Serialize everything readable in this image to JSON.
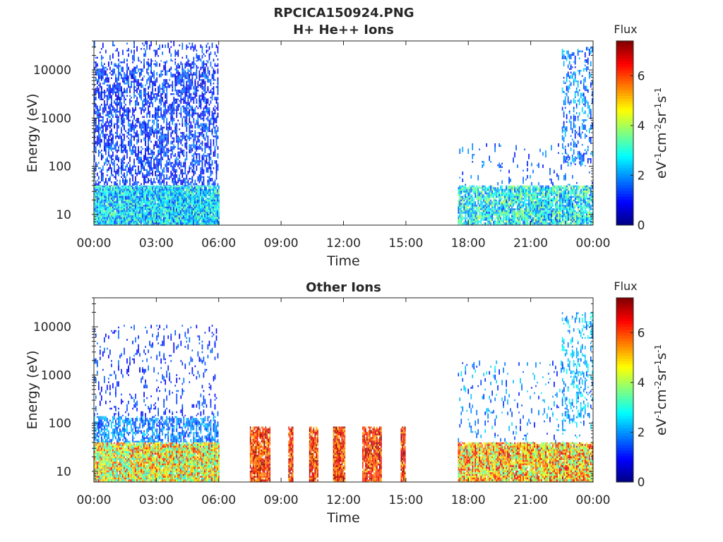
{
  "figure": {
    "title_line1": "RPCICA150924.PNG"
  },
  "chart_data": [
    {
      "type": "heatmap",
      "title": "H+ He++ Ions",
      "xlabel": "Time",
      "ylabel": "Energy (eV)",
      "x_tick_labels": [
        "00:00",
        "03:00",
        "06:00",
        "09:00",
        "12:00",
        "15:00",
        "18:00",
        "21:00",
        "00:00"
      ],
      "x_range_hours": [
        0,
        24
      ],
      "y_scale": "log",
      "y_range_eV": [
        6,
        40000
      ],
      "y_tick_labels": [
        "10",
        "100",
        "1000",
        "10000"
      ],
      "y_tick_values": [
        10,
        100,
        1000,
        10000
      ],
      "colorbar": {
        "title": "Flux",
        "unit_label": "eV-1cm-2sr-1s-1",
        "range": [
          0,
          7.4
        ],
        "tick_labels": [
          "0",
          "2",
          "4",
          "6"
        ],
        "tick_values": [
          0,
          2,
          4,
          6
        ],
        "colormap": "jet"
      },
      "blocks": [
        {
          "t0": 0.0,
          "t1": 6.05,
          "e0": 6,
          "e1": 40,
          "flux_min": 1.2,
          "flux_max": 3.8,
          "density": 0.95
        },
        {
          "t0": 0.0,
          "t1": 6.0,
          "e0": 40,
          "e1": 15000,
          "flux_min": 0.5,
          "flux_max": 2.0,
          "density": 0.35
        },
        {
          "t0": 0.0,
          "t1": 6.0,
          "e0": 15000,
          "e1": 40000,
          "flux_min": 0.8,
          "flux_max": 1.8,
          "density": 0.12
        },
        {
          "t0": 17.5,
          "t1": 24.0,
          "e0": 6,
          "e1": 40,
          "flux_min": 1.3,
          "flux_max": 4.2,
          "density": 0.75
        },
        {
          "t0": 17.5,
          "t1": 24.0,
          "e0": 40,
          "e1": 300,
          "flux_min": 1.0,
          "flux_max": 2.2,
          "density": 0.05
        },
        {
          "t0": 22.5,
          "t1": 24.0,
          "e0": 100,
          "e1": 30000,
          "flux_min": 1.0,
          "flux_max": 2.6,
          "density": 0.18
        }
      ]
    },
    {
      "type": "heatmap",
      "title": "Other Ions",
      "xlabel": "Time",
      "ylabel": "Energy (eV)",
      "x_tick_labels": [
        "00:00",
        "03:00",
        "06:00",
        "09:00",
        "12:00",
        "15:00",
        "18:00",
        "21:00",
        "00:00"
      ],
      "x_range_hours": [
        0,
        24
      ],
      "y_scale": "log",
      "y_range_eV": [
        6,
        40000
      ],
      "y_tick_labels": [
        "10",
        "100",
        "1000",
        "10000"
      ],
      "y_tick_values": [
        10,
        100,
        1000,
        10000
      ],
      "colorbar": {
        "title": "Flux",
        "unit_label": "eV-1cm-2sr-1s-1",
        "range": [
          0,
          7.4
        ],
        "tick_labels": [
          "0",
          "2",
          "4",
          "6"
        ],
        "tick_values": [
          0,
          2,
          4,
          6
        ],
        "colormap": "jet"
      },
      "blocks": [
        {
          "t0": 0.0,
          "t1": 6.05,
          "e0": 6,
          "e1": 40,
          "flux_min": 2.5,
          "flux_max": 6.5,
          "density": 0.95
        },
        {
          "t0": 0.0,
          "t1": 6.0,
          "e0": 40,
          "e1": 140,
          "flux_min": 1.0,
          "flux_max": 2.6,
          "density": 0.45
        },
        {
          "t0": 0.0,
          "t1": 6.0,
          "e0": 140,
          "e1": 11000,
          "flux_min": 0.8,
          "flux_max": 1.8,
          "density": 0.08
        },
        {
          "t0": 7.5,
          "t1": 8.5,
          "e0": 6,
          "e1": 85,
          "flux_min": 5.0,
          "flux_max": 7.4,
          "density": 0.8
        },
        {
          "t0": 9.35,
          "t1": 9.6,
          "e0": 6,
          "e1": 85,
          "flux_min": 5.0,
          "flux_max": 7.4,
          "density": 0.8
        },
        {
          "t0": 10.35,
          "t1": 10.8,
          "e0": 6,
          "e1": 85,
          "flux_min": 5.0,
          "flux_max": 7.4,
          "density": 0.8
        },
        {
          "t0": 11.5,
          "t1": 12.1,
          "e0": 6,
          "e1": 85,
          "flux_min": 5.0,
          "flux_max": 7.4,
          "density": 0.8
        },
        {
          "t0": 12.9,
          "t1": 13.85,
          "e0": 6,
          "e1": 85,
          "flux_min": 5.0,
          "flux_max": 7.4,
          "density": 0.8
        },
        {
          "t0": 14.75,
          "t1": 15.0,
          "e0": 6,
          "e1": 85,
          "flux_min": 5.0,
          "flux_max": 7.4,
          "density": 0.8
        },
        {
          "t0": 17.5,
          "t1": 24.0,
          "e0": 6,
          "e1": 40,
          "flux_min": 3.0,
          "flux_max": 6.8,
          "density": 0.9
        },
        {
          "t0": 17.5,
          "t1": 24.0,
          "e0": 40,
          "e1": 2000,
          "flux_min": 1.0,
          "flux_max": 2.8,
          "density": 0.06
        },
        {
          "t0": 22.5,
          "t1": 24.0,
          "e0": 100,
          "e1": 20000,
          "flux_min": 1.5,
          "flux_max": 3.0,
          "density": 0.15
        }
      ]
    }
  ]
}
